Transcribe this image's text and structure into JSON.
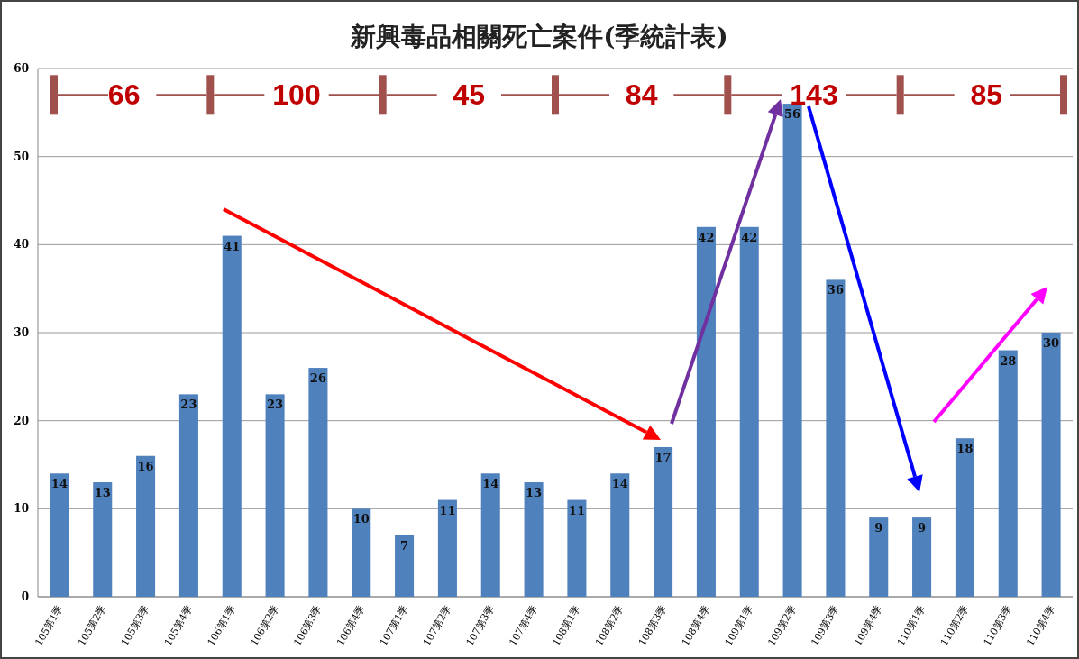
{
  "chart_data": {
    "type": "bar",
    "title": "新興毒品相關死亡案件(季統計表)",
    "categories": [
      "105第1季",
      "105第2季",
      "105第3季",
      "105第4季",
      "106第1季",
      "106第2季",
      "106第3季",
      "106第4季",
      "107第1季",
      "107第2季",
      "107第3季",
      "107第4季",
      "108第1季",
      "108第2季",
      "108第3季",
      "108第4季",
      "109第1季",
      "109第2季",
      "109第3季",
      "109第4季",
      "110第1季",
      "110第2季",
      "110第3季",
      "110第4季"
    ],
    "values": [
      14,
      13,
      16,
      23,
      41,
      23,
      26,
      10,
      7,
      11,
      14,
      13,
      11,
      14,
      17,
      42,
      42,
      56,
      36,
      9,
      9,
      18,
      28,
      30
    ],
    "color": "#4f81bd",
    "ylim": [
      0,
      60
    ],
    "yticks": [
      0,
      10,
      20,
      30,
      40,
      50,
      60
    ],
    "grid": "y",
    "data_labels": true,
    "annotations": [
      "66",
      "100",
      "45",
      "84",
      "143",
      "85"
    ]
  }
}
